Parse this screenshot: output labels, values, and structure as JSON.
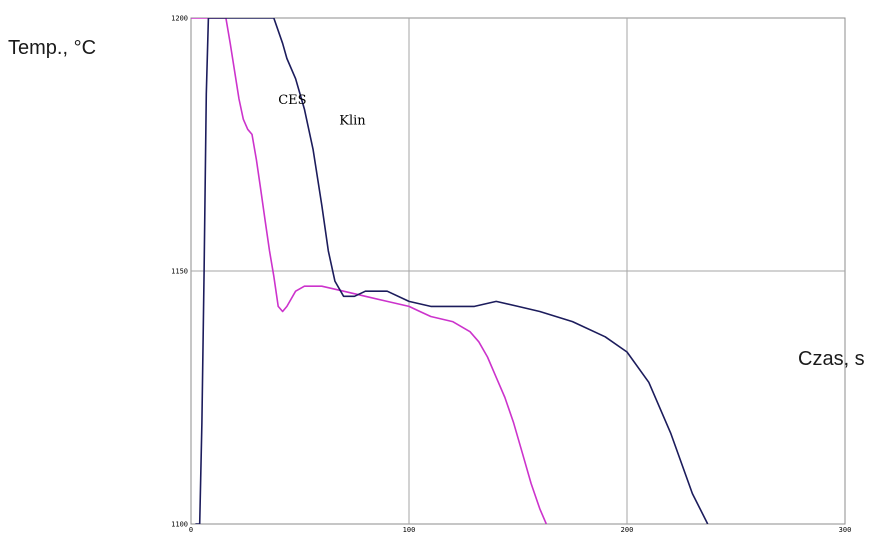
{
  "chart_data": {
    "type": "line",
    "ylabel": "Temp., °C",
    "xlabel": "Czas, s",
    "ylim": [
      1100,
      1200
    ],
    "y_ticks": [
      1100,
      1150,
      1200
    ],
    "y_tick_labels": [
      "1100",
      "1150",
      "1200"
    ],
    "xlim": [
      0,
      300
    ],
    "x_ticks": [
      0,
      100,
      200,
      300
    ],
    "x_tick_labels": [
      "0",
      "100",
      "200",
      "300"
    ],
    "grid": true,
    "annotations": [
      {
        "text": "CES",
        "x": 40,
        "y": 1183
      },
      {
        "text": "Klin",
        "x": 68,
        "y": 1179
      }
    ],
    "series": [
      {
        "name": "CES",
        "color": "#cc33cc",
        "x": [
          -2,
          -1,
          16,
          18,
          22,
          24,
          26,
          28,
          30,
          32,
          34,
          36,
          38,
          40,
          42,
          44,
          48,
          52,
          56,
          60,
          70,
          80,
          90,
          100,
          105,
          110,
          120,
          128,
          132,
          136,
          140,
          144,
          148,
          152,
          156,
          160,
          163
        ],
        "y": [
          1100,
          1200,
          1200,
          1195,
          1184,
          1180,
          1178,
          1177,
          1172,
          1166,
          1160,
          1154,
          1149,
          1143,
          1142,
          1143,
          1146,
          1147,
          1147,
          1147,
          1146,
          1145,
          1144,
          1143,
          1142,
          1141,
          1140,
          1138,
          1136,
          1133,
          1129,
          1125,
          1120,
          1114,
          1108,
          1103,
          1100
        ]
      },
      {
        "name": "Klin",
        "color": "#1c1c5c",
        "x": [
          2,
          4,
          5,
          6,
          7,
          8,
          9,
          38,
          42,
          44,
          48,
          52,
          56,
          60,
          63,
          66,
          70,
          75,
          80,
          90,
          100,
          110,
          130,
          140,
          150,
          160,
          175,
          190,
          200,
          210,
          220,
          230,
          237
        ],
        "y": [
          1100,
          1100,
          1120,
          1150,
          1185,
          1200,
          1200,
          1200,
          1195,
          1192,
          1188,
          1182,
          1174,
          1163,
          1154,
          1148,
          1145,
          1145,
          1146,
          1146,
          1144,
          1143,
          1143,
          1144,
          1143,
          1142,
          1140,
          1137,
          1134,
          1128,
          1118,
          1106,
          1100
        ]
      }
    ]
  }
}
